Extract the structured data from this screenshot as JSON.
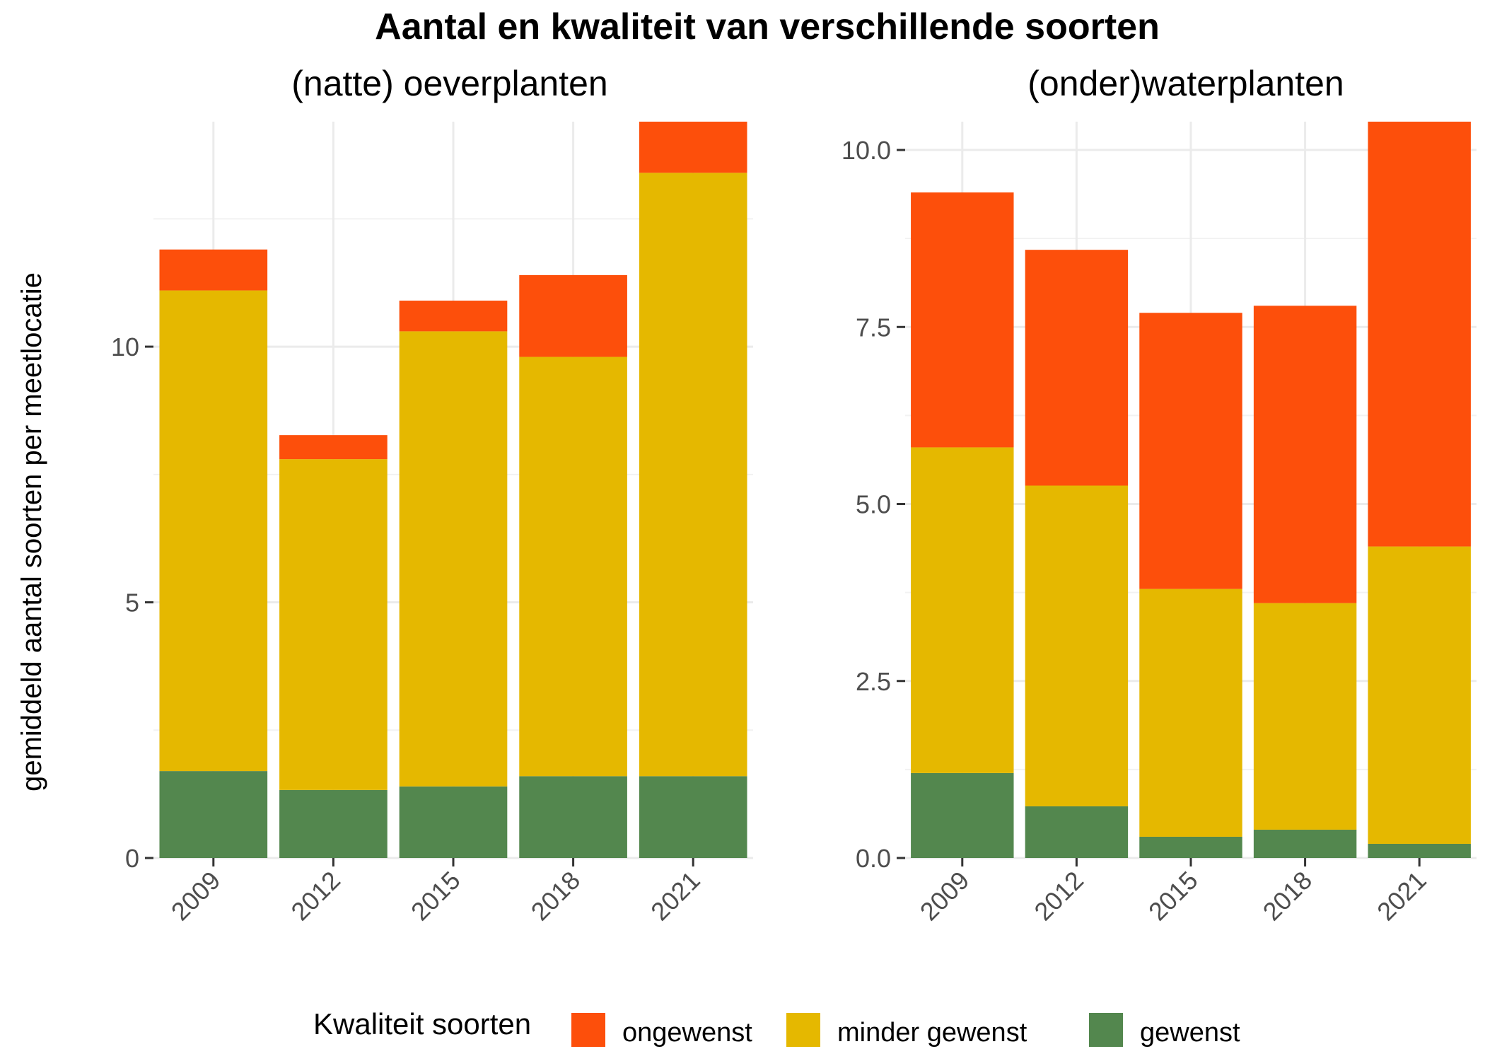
{
  "chart_data": {
    "type": "bar",
    "title": "Aantal en kwaliteit van verschillende soorten",
    "ylabel": "gemiddeld aantal soorten per meetlocatie",
    "legend": {
      "title": "Kwaliteit soorten",
      "position": "bottom",
      "entries": [
        "ongewenst",
        "minder gewenst",
        "gewenst"
      ]
    },
    "colors": {
      "ongewenst": "#fd4f0b",
      "minder gewenst": "#e5b800",
      "gewenst": "#53874e"
    },
    "stacked": true,
    "grid": true,
    "panels": [
      {
        "title": "(natte) oeverplanten",
        "categories": [
          "2009",
          "2012",
          "2015",
          "2018",
          "2021"
        ],
        "ylim": [
          0,
          14.4
        ],
        "yticks": [
          0,
          5,
          10
        ],
        "ytick_labels": [
          "0",
          "5",
          "10"
        ],
        "series": [
          {
            "name": "gewenst",
            "values": [
              1.7,
              1.33,
              1.4,
              1.6,
              1.6
            ]
          },
          {
            "name": "minder gewenst",
            "values": [
              9.4,
              6.47,
              8.9,
              8.2,
              11.8
            ]
          },
          {
            "name": "ongewenst",
            "values": [
              0.8,
              0.47,
              0.6,
              1.6,
              1.0
            ]
          }
        ]
      },
      {
        "title": "(onder)waterplanten",
        "categories": [
          "2009",
          "2012",
          "2015",
          "2018",
          "2021"
        ],
        "ylim": [
          0,
          10.4
        ],
        "yticks": [
          0,
          2.5,
          5,
          7.5,
          10
        ],
        "ytick_labels": [
          "0.0",
          "2.5",
          "5.0",
          "7.5",
          "10.0"
        ],
        "series": [
          {
            "name": "gewenst",
            "values": [
              1.2,
              0.73,
              0.3,
              0.4,
              0.2
            ]
          },
          {
            "name": "minder gewenst",
            "values": [
              4.6,
              4.53,
              3.5,
              3.2,
              4.2
            ]
          },
          {
            "name": "ongewenst",
            "values": [
              3.6,
              3.33,
              3.9,
              4.2,
              6.0
            ]
          }
        ]
      }
    ]
  }
}
